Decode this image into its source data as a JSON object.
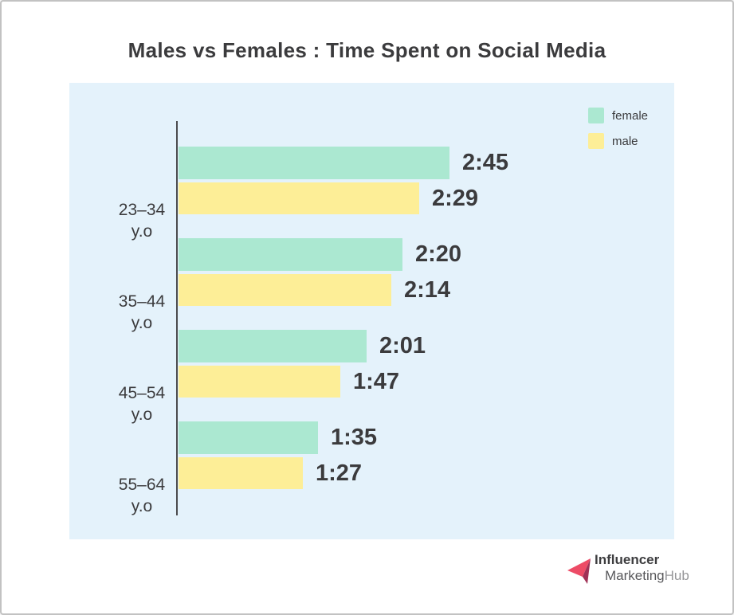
{
  "title": "Males vs Females : Time Spent on Social Media",
  "chart_data": {
    "type": "bar",
    "orientation": "horizontal",
    "title": "Males vs Females : Time Spent on Social Media",
    "categories": [
      {
        "range": "23–34",
        "suffix": "y.o"
      },
      {
        "range": "35–44",
        "suffix": "y.o"
      },
      {
        "range": "45–54",
        "suffix": "y.o"
      },
      {
        "range": "55–64",
        "suffix": "y.o"
      }
    ],
    "series": [
      {
        "name": "female",
        "color": "#abe8d1",
        "values": [
          "2:45",
          "2:20",
          "2:01",
          "1:35"
        ],
        "minutes": [
          165,
          140,
          121,
          95
        ]
      },
      {
        "name": "male",
        "color": "#fdee97",
        "values": [
          "2:29",
          "2:14",
          "1:47",
          "1:27"
        ],
        "minutes": [
          149,
          134,
          107,
          87
        ]
      }
    ],
    "legend_position": "top-right",
    "grid": false
  },
  "legend": {
    "items": [
      {
        "label": "female",
        "color": "#abe8d1"
      },
      {
        "label": "male",
        "color": "#fdee97"
      }
    ]
  },
  "logo": {
    "line1": "Influencer",
    "line2_marketing": "Marketing",
    "line2_hub": "Hub"
  },
  "colors": {
    "page_bg": "#ffffff",
    "panel_bg": "#e4f2fb",
    "female_bar": "#abe8d1",
    "male_bar": "#fdee97",
    "text_dark": "#3b3b3d",
    "axis": "#4b4b4e",
    "logo_pink": "#ed4b66",
    "logo_dark_pink": "#a03156"
  }
}
